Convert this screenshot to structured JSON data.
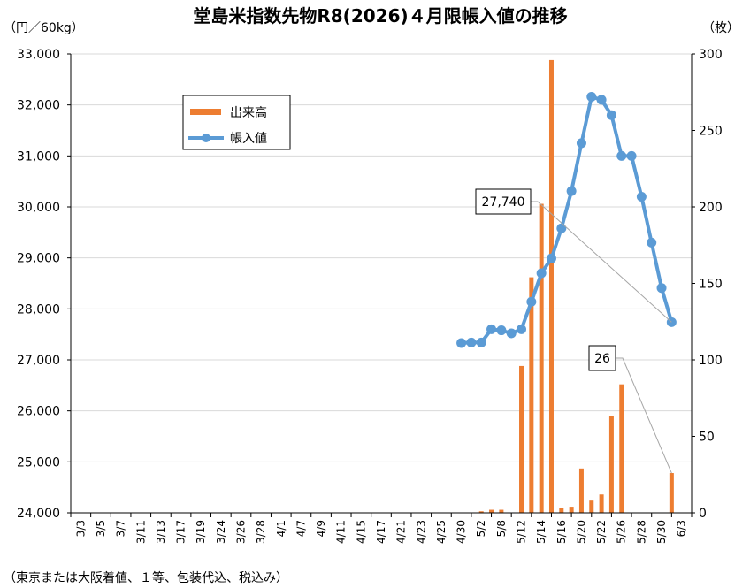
{
  "chart_data": {
    "type": "bar+line",
    "title": "堂島米指数先物R8(2026)４月限帳入値の推移",
    "y_left_label": "（円／60kg）",
    "y_right_label": "（枚）",
    "ylim_left": [
      24000,
      33000
    ],
    "ylim_right": [
      0,
      300
    ],
    "y_left_ticks": [
      "24,000",
      "25,000",
      "26,000",
      "27,000",
      "28,000",
      "29,000",
      "30,000",
      "31,000",
      "32,000",
      "33,000"
    ],
    "y_right_ticks": [
      "0",
      "50",
      "100",
      "150",
      "200",
      "250",
      "300"
    ],
    "x_tick_labels": [
      "3/3",
      "3/5",
      "3/7",
      "3/11",
      "3/13",
      "3/17",
      "3/19",
      "3/24",
      "3/26",
      "3/28",
      "4/1",
      "4/7",
      "4/9",
      "4/11",
      "4/15",
      "4/17",
      "4/21",
      "4/23",
      "4/25",
      "4/30",
      "5/2",
      "5/8",
      "5/12",
      "5/14",
      "5/16",
      "5/20",
      "5/22",
      "5/26",
      "5/28",
      "5/30",
      "6/3"
    ],
    "grid": true,
    "legend_position": "upper-left",
    "series": [
      {
        "name": "出来高",
        "type": "bar",
        "axis": "right",
        "color": "#ED7D31",
        "points": [
          {
            "x": 20.5,
            "y": 1
          },
          {
            "x": 21.0,
            "y": 2
          },
          {
            "x": 21.5,
            "y": 2
          },
          {
            "x": 22.5,
            "y": 96
          },
          {
            "x": 23.0,
            "y": 154
          },
          {
            "x": 23.5,
            "y": 202
          },
          {
            "x": 24.0,
            "y": 296
          },
          {
            "x": 24.5,
            "y": 3
          },
          {
            "x": 25.0,
            "y": 4
          },
          {
            "x": 25.5,
            "y": 29
          },
          {
            "x": 26.0,
            "y": 8
          },
          {
            "x": 26.5,
            "y": 12
          },
          {
            "x": 27.0,
            "y": 63
          },
          {
            "x": 27.5,
            "y": 84
          },
          {
            "x": 30.0,
            "y": 26
          }
        ]
      },
      {
        "name": "帳入値",
        "type": "line",
        "axis": "left",
        "color": "#5B9BD5",
        "points": [
          {
            "x": 19.5,
            "y": 27330
          },
          {
            "x": 20.0,
            "y": 27340
          },
          {
            "x": 20.5,
            "y": 27340
          },
          {
            "x": 21.0,
            "y": 27600
          },
          {
            "x": 21.5,
            "y": 27580
          },
          {
            "x": 22.0,
            "y": 27520
          },
          {
            "x": 22.5,
            "y": 27600
          },
          {
            "x": 23.0,
            "y": 28140
          },
          {
            "x": 23.5,
            "y": 28700
          },
          {
            "x": 24.0,
            "y": 28990
          },
          {
            "x": 24.5,
            "y": 29580
          },
          {
            "x": 25.0,
            "y": 30310
          },
          {
            "x": 25.5,
            "y": 31250
          },
          {
            "x": 26.0,
            "y": 32160
          },
          {
            "x": 26.5,
            "y": 32100
          },
          {
            "x": 27.0,
            "y": 31800
          },
          {
            "x": 27.5,
            "y": 31000
          },
          {
            "x": 28.0,
            "y": 31000
          },
          {
            "x": 28.5,
            "y": 30200
          },
          {
            "x": 29.0,
            "y": 29300
          },
          {
            "x": 29.5,
            "y": 28410
          },
          {
            "x": 30.0,
            "y": 27740
          }
        ]
      }
    ],
    "annotations": [
      {
        "text": "27,740",
        "series": "帳入値",
        "x": 30.0,
        "y": 27740
      },
      {
        "text": "26",
        "series": "出来高",
        "x": 30.0,
        "y": 26
      }
    ],
    "footnote": "（東京または大阪着値、１等、包装代込、税込み）"
  }
}
